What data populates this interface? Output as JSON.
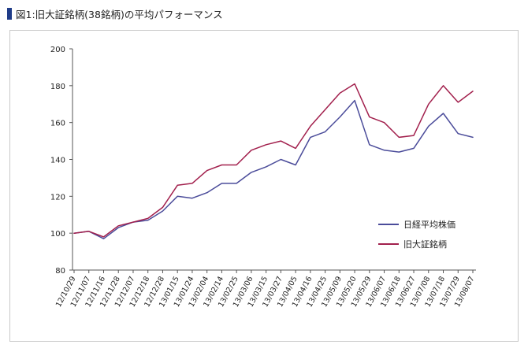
{
  "page": {
    "title": "図1:旧大証銘柄(38銘柄)の平均パフォーマンス",
    "title_marker_color": "#1f3c88"
  },
  "chart_data": {
    "type": "line",
    "title": "図1:旧大証銘柄(38銘柄)の平均パフォーマンス",
    "xlabel": "",
    "ylabel": "",
    "ylim": [
      80,
      200
    ],
    "yticks": [
      80,
      100,
      120,
      140,
      160,
      180,
      200
    ],
    "grid": false,
    "legend_position": "right-middle",
    "x": [
      "12/10/29",
      "12/11/07",
      "12/11/16",
      "12/11/28",
      "12/12/07",
      "12/12/18",
      "12/12/28",
      "13/01/15",
      "13/01/24",
      "13/02/04",
      "13/02/14",
      "13/02/25",
      "13/03/06",
      "13/03/15",
      "13/03/27",
      "13/04/05",
      "13/04/16",
      "13/04/25",
      "13/05/09",
      "13/05/20",
      "13/05/29",
      "13/06/07",
      "13/06/18",
      "13/06/27",
      "13/07/08",
      "13/07/18",
      "13/07/29",
      "13/08/07"
    ],
    "series": [
      {
        "name": "日経平均株価",
        "color": "#4b4c9a",
        "values": [
          100,
          101,
          97,
          103,
          106,
          107,
          112,
          120,
          119,
          122,
          127,
          127,
          133,
          136,
          140,
          137,
          152,
          155,
          163,
          172,
          148,
          145,
          144,
          146,
          158,
          165,
          154,
          152
        ]
      },
      {
        "name": "旧大証銘柄",
        "color": "#a2204d",
        "values": [
          100,
          101,
          98,
          104,
          106,
          108,
          114,
          126,
          127,
          134,
          137,
          137,
          145,
          148,
          150,
          146,
          158,
          167,
          176,
          181,
          163,
          160,
          152,
          153,
          170,
          180,
          171,
          177
        ]
      }
    ]
  }
}
